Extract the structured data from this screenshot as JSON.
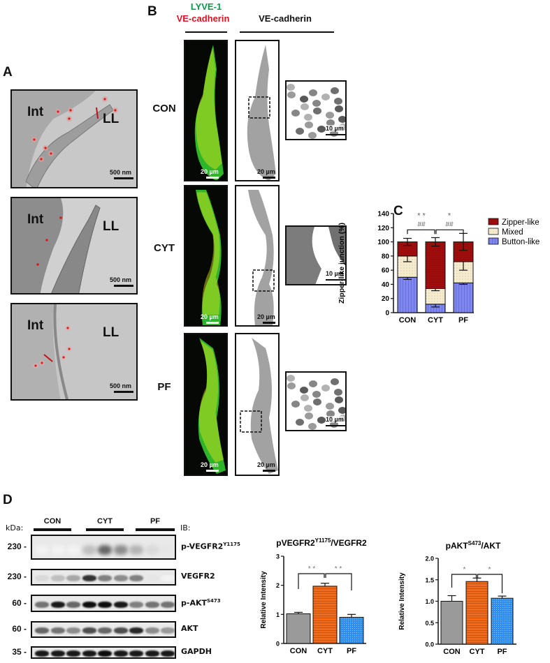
{
  "panels": {
    "A": {
      "letter": "A",
      "images": [
        {
          "int_label": "Int",
          "ll_label": "LL",
          "scale": "500 nm"
        },
        {
          "int_label": "Int",
          "ll_label": "LL",
          "scale": "500 nm"
        },
        {
          "int_label": "Int",
          "ll_label": "LL",
          "scale": "500 nm"
        }
      ]
    },
    "B": {
      "letter": "B",
      "header_green": "LYVE-1",
      "header_red": "VE-cadherin",
      "header_black": "VE-cadherin",
      "rows": [
        {
          "label": "CON",
          "scale_fluor": "20 µm",
          "scale_gray": "20 µm",
          "scale_zoom": "10 µm"
        },
        {
          "label": "CYT",
          "scale_fluor": "20 µm",
          "scale_gray": "20 µm",
          "scale_zoom": "10 µm"
        },
        {
          "label": "PF",
          "scale_fluor": "20 µm",
          "scale_gray": "20 µm",
          "scale_zoom": "10 µm"
        }
      ]
    },
    "C": {
      "letter": "C"
    },
    "D": {
      "letter": "D",
      "kda_label": "kDa:",
      "ib_label": "IB:",
      "groups": [
        "CON",
        "CYT",
        "PF"
      ],
      "blots": [
        {
          "kda": "230 -",
          "name": "p-VEGFR2",
          "sup": "Y1175"
        },
        {
          "kda": "230 -",
          "name": "VEGFR2",
          "sup": ""
        },
        {
          "kda": "60 -",
          "name": "p-AKT",
          "sup": "S473"
        },
        {
          "kda": "60 -",
          "name": "AKT",
          "sup": ""
        },
        {
          "kda": "35 -",
          "name": "GAPDH",
          "sup": ""
        }
      ]
    }
  },
  "colors": {
    "zipper": "#a00d0d",
    "mixed": "#f5ecd0",
    "button": "#8088ee",
    "con_bar": "#9a9a9a",
    "cyt_bar": "#f26a1b",
    "pf_bar": "#2f8ff0",
    "green": "#0c9a4a",
    "red": "#e0101e"
  },
  "chart_data": [
    {
      "type": "bar",
      "stacked": true,
      "title": "",
      "xlabel": "",
      "ylabel": "Zipper-like junction (%)",
      "ylim": [
        0,
        140
      ],
      "yticks": [
        0,
        20,
        40,
        60,
        80,
        100,
        120,
        140
      ],
      "categories": [
        "CON",
        "CYT",
        "PF"
      ],
      "series": [
        {
          "name": "Button-like",
          "values": [
            50,
            12,
            42
          ],
          "errors": [
            3,
            4,
            2
          ]
        },
        {
          "name": "Mixed",
          "values": [
            30,
            22,
            30
          ],
          "errors": [
            8,
            3,
            12
          ]
        },
        {
          "name": "Zipper-like",
          "values": [
            20,
            66,
            28
          ],
          "errors": [
            5,
            6,
            12
          ]
        }
      ],
      "legend": [
        "Zipper-like",
        "Mixed",
        "Button-like"
      ],
      "legend_position": "right",
      "annotations": [
        {
          "text": "* *",
          "between": [
            "CON",
            "CYT"
          ]
        },
        {
          "text": "##",
          "between": [
            "CON",
            "CYT"
          ]
        },
        {
          "text": "*",
          "between": [
            "CYT",
            "PF"
          ]
        },
        {
          "text": "##",
          "between": [
            "CYT",
            "PF"
          ]
        }
      ]
    },
    {
      "type": "bar",
      "title": "pVEGFR2^Y1175/VEGFR2",
      "title_main": "pVEGFR2",
      "title_sup": "Y1175",
      "title_tail": "/VEGFR2",
      "xlabel": "",
      "ylabel": "Relative Intensity",
      "ylim": [
        0,
        3
      ],
      "yticks": [
        0,
        1,
        2,
        3
      ],
      "categories": [
        "CON",
        "CYT",
        "PF"
      ],
      "values": [
        1.02,
        1.97,
        0.9
      ],
      "errors": [
        0.05,
        0.1,
        0.1
      ],
      "annotations": [
        {
          "text": "* *",
          "between": [
            "CON",
            "CYT"
          ]
        },
        {
          "text": "* *",
          "between": [
            "CYT",
            "PF"
          ]
        }
      ]
    },
    {
      "type": "bar",
      "title": "pAKT^S473/AKT",
      "title_main": "pAKT",
      "title_sup": "S473",
      "title_tail": "/AKT",
      "xlabel": "",
      "ylabel": "Relative Intensity",
      "ylim": [
        0,
        2.0
      ],
      "yticks": [
        "0.0",
        "0.5",
        "1.0",
        "1.5",
        "2.0"
      ],
      "categories": [
        "CON",
        "CYT",
        "PF"
      ],
      "values": [
        1.0,
        1.46,
        1.07
      ],
      "errors": [
        0.13,
        0.08,
        0.05
      ],
      "annotations": [
        {
          "text": "*",
          "between": [
            "CON",
            "CYT"
          ]
        },
        {
          "text": "*",
          "between": [
            "CYT",
            "PF"
          ]
        }
      ]
    }
  ]
}
